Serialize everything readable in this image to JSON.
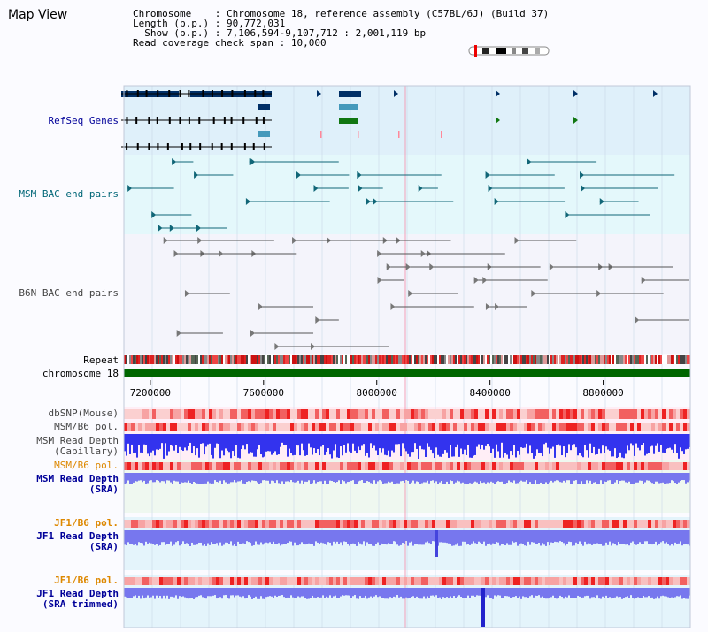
{
  "view_title": "Map View",
  "info": {
    "chromosome_key": "Chromosome",
    "chromosome_value": "Chromosome 18, reference assembly (C57BL/6J) (Build 37)",
    "length_key": "Length (b.p.)",
    "length_value": "90,772,031",
    "show_key": "Show (b.p.)",
    "show_value": "7,106,594-9,107,712 : 2,001,119 bp",
    "coverage_key": "Read coverage check span",
    "coverage_value": "10,000"
  },
  "tracks": {
    "refseq": "RefSeq Genes",
    "msm_bac": "MSM BAC end pairs",
    "b6n_bac": "B6N BAC end pairs",
    "repeat": "Repeat",
    "chromosome": "chromosome 18",
    "dbsnp": "dbSNP(Mouse)",
    "msm_b6_pol_1": "MSM/B6 pol.",
    "msm_depth_cap_1": "MSM Read Depth",
    "msm_depth_cap_2": "(Capillary)",
    "msm_b6_pol_2": "MSM/B6 pol.",
    "msm_depth_sra_1": "MSM Read Depth",
    "msm_depth_sra_2": "(SRA)",
    "jf1_b6_pol_1": "JF1/B6 pol.",
    "jf1_depth_sra_1": "JF1 Read Depth",
    "jf1_depth_sra_2": "(SRA)",
    "jf1_b6_pol_2": "JF1/B6 pol.",
    "jf1_depth_trim_1": "JF1 Read Depth",
    "jf1_depth_trim_2": "(SRA trimmed)"
  },
  "axis": {
    "ticks": [
      "7200000",
      "7600000",
      "8000000",
      "8400000",
      "8800000"
    ],
    "tick_values": [
      7200000,
      7600000,
      8000000,
      8400000,
      8800000
    ],
    "range": [
      7106594,
      9107712
    ]
  },
  "colors": {
    "label_blue": "#000099",
    "label_teal": "#006677",
    "label_gray": "#444444",
    "label_orange": "#dd8800",
    "chromosome_green": "#006600",
    "depth_blue": "#3333ee",
    "depth_light": "#7777ee",
    "pol_red": "#ee3333"
  }
}
